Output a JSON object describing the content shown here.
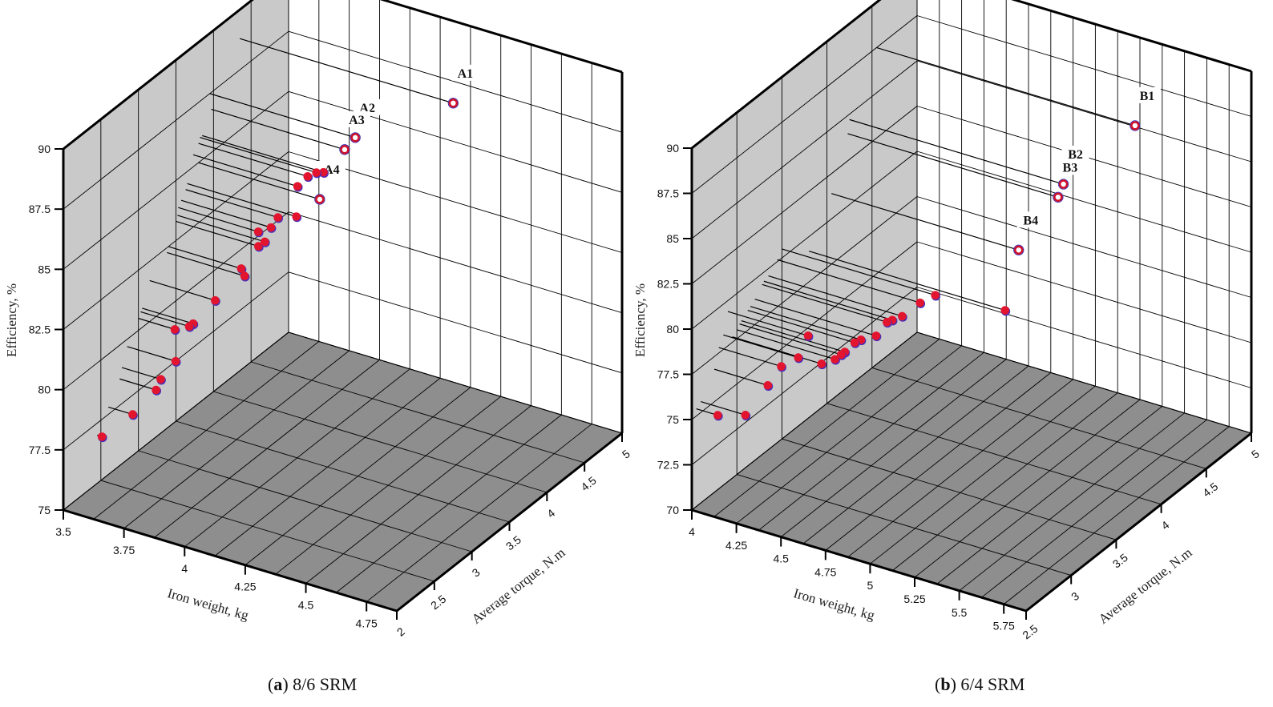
{
  "chart_data": [
    {
      "type": "scatter3d",
      "caption_letter": "a",
      "caption_text": "8/6 SRM",
      "xlabel": "Iron weight, kg",
      "ylabel": "Average torque, N.m",
      "zlabel": "Efficiency, %",
      "xlim": [
        3.5,
        4.875
      ],
      "ylim": [
        2,
        5
      ],
      "zlim": [
        75,
        90
      ],
      "xticks": [
        "3.5",
        "3.75",
        "4",
        "4.25",
        "4.5",
        "4.75"
      ],
      "yticks": [
        "2",
        "2.5",
        "3",
        "3.5",
        "4",
        "4.5",
        "5"
      ],
      "zticks": [
        "75",
        "77.5",
        "80",
        "82.5",
        "85",
        "87.5",
        "90"
      ],
      "points": [
        {
          "x": 4.38,
          "y": 4.35,
          "z": 88.8,
          "label": "A1"
        },
        {
          "x": 4.1,
          "y": 3.95,
          "z": 87.5,
          "label": "A2"
        },
        {
          "x": 4.05,
          "y": 3.97,
          "z": 86.8,
          "label": "A3"
        },
        {
          "x": 4.0,
          "y": 3.8,
          "z": 85.0,
          "label": "A4"
        },
        {
          "x": 4.0,
          "y": 3.85,
          "z": 86.0,
          "label": ""
        },
        {
          "x": 3.98,
          "y": 3.82,
          "z": 86.0,
          "label": ""
        },
        {
          "x": 3.95,
          "y": 3.8,
          "z": 85.8,
          "label": ""
        },
        {
          "x": 3.95,
          "y": 3.65,
          "z": 84.5,
          "label": ""
        },
        {
          "x": 3.93,
          "y": 3.73,
          "z": 85.5,
          "label": ""
        },
        {
          "x": 3.88,
          "y": 3.63,
          "z": 84.3,
          "label": ""
        },
        {
          "x": 3.87,
          "y": 3.57,
          "z": 84.0,
          "label": ""
        },
        {
          "x": 3.84,
          "y": 3.5,
          "z": 83.3,
          "label": ""
        },
        {
          "x": 3.83,
          "y": 3.53,
          "z": 83.8,
          "label": ""
        },
        {
          "x": 3.86,
          "y": 3.52,
          "z": 83.5,
          "label": ""
        },
        {
          "x": 3.8,
          "y": 3.4,
          "z": 82.5,
          "label": ""
        },
        {
          "x": 3.82,
          "y": 3.38,
          "z": 82.3,
          "label": ""
        },
        {
          "x": 3.77,
          "y": 3.15,
          "z": 81.7,
          "label": ""
        },
        {
          "x": 3.71,
          "y": 3.05,
          "z": 80.8,
          "label": ""
        },
        {
          "x": 3.7,
          "y": 3.03,
          "z": 80.7,
          "label": ""
        },
        {
          "x": 3.65,
          "y": 3.0,
          "z": 80.5,
          "label": ""
        },
        {
          "x": 3.7,
          "y": 2.85,
          "z": 79.7,
          "label": ""
        },
        {
          "x": 3.66,
          "y": 2.78,
          "z": 79.0,
          "label": ""
        },
        {
          "x": 3.65,
          "y": 2.75,
          "z": 78.6,
          "label": ""
        },
        {
          "x": 3.6,
          "y": 2.6,
          "z": 77.8,
          "label": ""
        },
        {
          "x": 3.52,
          "y": 2.45,
          "z": 77.0,
          "label": ""
        }
      ]
    },
    {
      "type": "scatter3d",
      "caption_letter": "b",
      "caption_text": "6/4 SRM",
      "xlabel": "Iron weight, kg",
      "ylabel": "Average torque, N.m",
      "zlabel": "Efficiency, %",
      "xlim": [
        4,
        5.875
      ],
      "ylim": [
        2.5,
        5
      ],
      "zlim": [
        70,
        90
      ],
      "xticks": [
        "4",
        "4.25",
        "4.5",
        "4.75",
        "5",
        "5.25",
        "5.5",
        "5.75"
      ],
      "yticks": [
        "2.5",
        "3",
        "3.5",
        "4",
        "4.5",
        "5"
      ],
      "zticks": [
        "70",
        "72.5",
        "75",
        "77.5",
        "80",
        "82.5",
        "85",
        "87.5",
        "90"
      ],
      "points": [
        {
          "x": 5.45,
          "y": 4.55,
          "z": 87.5,
          "label": "B1"
        },
        {
          "x": 5.2,
          "y": 4.25,
          "z": 84.7,
          "label": "B2"
        },
        {
          "x": 5.18,
          "y": 4.23,
          "z": 84.0,
          "label": "B3"
        },
        {
          "x": 5.05,
          "y": 4.05,
          "z": 81.4,
          "label": "B4"
        },
        {
          "x": 5.1,
          "y": 3.8,
          "z": 79.2,
          "label": ""
        },
        {
          "x": 4.86,
          "y": 3.5,
          "z": 80.5,
          "label": ""
        },
        {
          "x": 4.8,
          "y": 3.45,
          "z": 80.1,
          "label": ""
        },
        {
          "x": 4.75,
          "y": 3.35,
          "z": 79.6,
          "label": ""
        },
        {
          "x": 4.72,
          "y": 3.3,
          "z": 79.5,
          "label": ""
        },
        {
          "x": 4.7,
          "y": 3.28,
          "z": 79.4,
          "label": ""
        },
        {
          "x": 4.68,
          "y": 3.2,
          "z": 78.9,
          "label": ""
        },
        {
          "x": 4.62,
          "y": 3.15,
          "z": 78.7,
          "label": ""
        },
        {
          "x": 4.6,
          "y": 3.12,
          "z": 78.6,
          "label": ""
        },
        {
          "x": 4.58,
          "y": 3.05,
          "z": 78.3,
          "label": ""
        },
        {
          "x": 4.57,
          "y": 3.03,
          "z": 78.2,
          "label": ""
        },
        {
          "x": 4.55,
          "y": 3.0,
          "z": 78.0,
          "label": ""
        },
        {
          "x": 4.5,
          "y": 2.95,
          "z": 77.8,
          "label": ""
        },
        {
          "x": 4.45,
          "y": 2.9,
          "z": 79.4,
          "label": ""
        },
        {
          "x": 4.42,
          "y": 2.85,
          "z": 78.3,
          "label": ""
        },
        {
          "x": 4.35,
          "y": 2.8,
          "z": 77.8,
          "label": ""
        },
        {
          "x": 4.3,
          "y": 2.75,
          "z": 76.8,
          "label": ""
        },
        {
          "x": 4.25,
          "y": 2.6,
          "z": 75.6,
          "label": ""
        },
        {
          "x": 4.12,
          "y": 2.55,
          "z": 75.4,
          "label": ""
        }
      ]
    }
  ]
}
